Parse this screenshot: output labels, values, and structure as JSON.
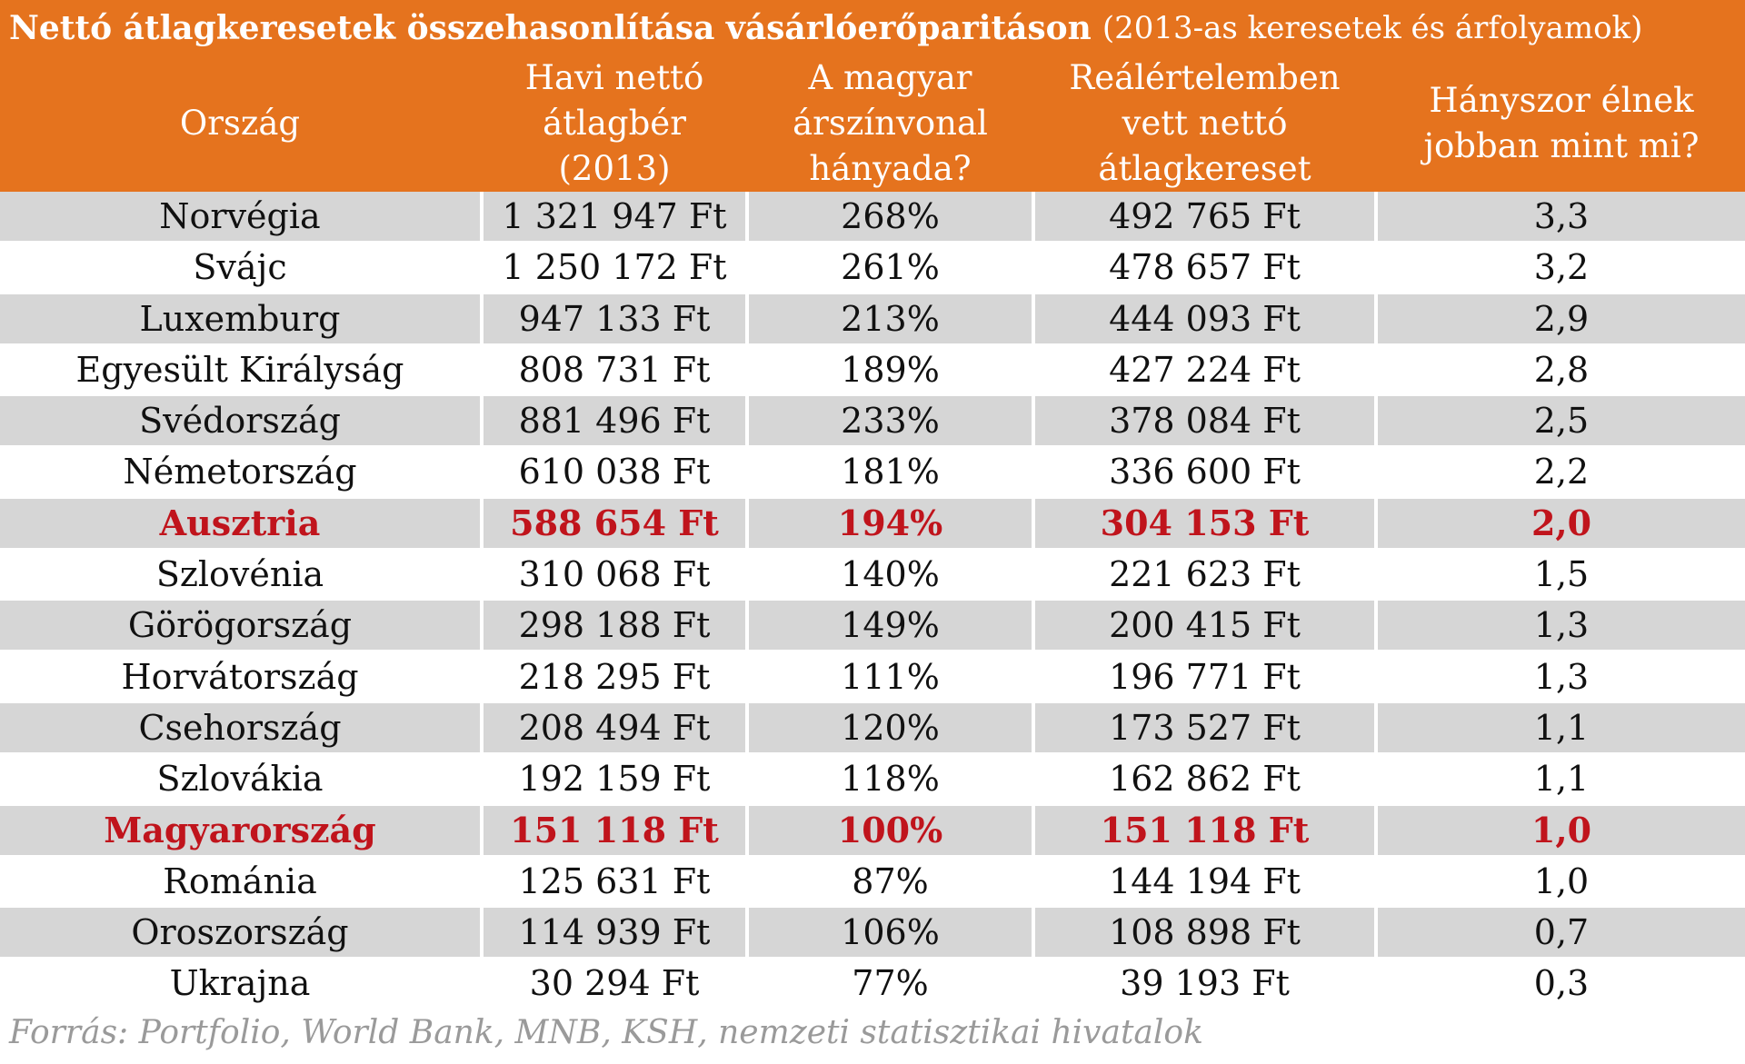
{
  "title": {
    "main": "Nettó átlagkeresetek összehasonlítása vásárlóerőparitáson",
    "sub": "(2013-as keresetek és árfolyamok)"
  },
  "headers": [
    "Ország",
    "Havi nettó átlagbér (2013)",
    "A magyar árszínvonal hányada?",
    "Reálértelemben vett nettó átlagkereset",
    "Hányszor élnek jobban mint mi?"
  ],
  "rows": [
    {
      "country": "Norvégia",
      "wage": "1 321 947 Ft",
      "price_level": "268%",
      "real_wage": "492 765 Ft",
      "ratio": "3,3",
      "highlight": false
    },
    {
      "country": "Svájc",
      "wage": "1 250 172 Ft",
      "price_level": "261%",
      "real_wage": "478 657 Ft",
      "ratio": "3,2",
      "highlight": false
    },
    {
      "country": "Luxemburg",
      "wage": "947 133 Ft",
      "price_level": "213%",
      "real_wage": "444 093 Ft",
      "ratio": "2,9",
      "highlight": false
    },
    {
      "country": "Egyesült Királyság",
      "wage": "808 731 Ft",
      "price_level": "189%",
      "real_wage": "427 224 Ft",
      "ratio": "2,8",
      "highlight": false
    },
    {
      "country": "Svédország",
      "wage": "881 496 Ft",
      "price_level": "233%",
      "real_wage": "378 084 Ft",
      "ratio": "2,5",
      "highlight": false
    },
    {
      "country": "Németország",
      "wage": "610 038 Ft",
      "price_level": "181%",
      "real_wage": "336 600 Ft",
      "ratio": "2,2",
      "highlight": false
    },
    {
      "country": "Ausztria",
      "wage": "588 654 Ft",
      "price_level": "194%",
      "real_wage": "304 153 Ft",
      "ratio": "2,0",
      "highlight": true
    },
    {
      "country": "Szlovénia",
      "wage": "310 068 Ft",
      "price_level": "140%",
      "real_wage": "221 623 Ft",
      "ratio": "1,5",
      "highlight": false
    },
    {
      "country": "Görögország",
      "wage": "298 188 Ft",
      "price_level": "149%",
      "real_wage": "200 415 Ft",
      "ratio": "1,3",
      "highlight": false
    },
    {
      "country": "Horvátország",
      "wage": "218 295 Ft",
      "price_level": "111%",
      "real_wage": "196 771 Ft",
      "ratio": "1,3",
      "highlight": false
    },
    {
      "country": "Csehország",
      "wage": "208 494 Ft",
      "price_level": "120%",
      "real_wage": "173 527 Ft",
      "ratio": "1,1",
      "highlight": false
    },
    {
      "country": "Szlovákia",
      "wage": "192 159 Ft",
      "price_level": "118%",
      "real_wage": "162 862 Ft",
      "ratio": "1,1",
      "highlight": false
    },
    {
      "country": "Magyarország",
      "wage": "151 118 Ft",
      "price_level": "100%",
      "real_wage": "151 118 Ft",
      "ratio": "1,0",
      "highlight": true
    },
    {
      "country": "Románia",
      "wage": "125 631 Ft",
      "price_level": "87%",
      "real_wage": "144 194 Ft",
      "ratio": "1,0",
      "highlight": false
    },
    {
      "country": "Oroszország",
      "wage": "114 939 Ft",
      "price_level": "106%",
      "real_wage": "108 898 Ft",
      "ratio": "0,7",
      "highlight": false
    },
    {
      "country": "Ukrajna",
      "wage": "30 294 Ft",
      "price_level": "77%",
      "real_wage": "39 193 Ft",
      "ratio": "0,3",
      "highlight": false
    }
  ],
  "source": "Forrás: Portfolio, World Bank, MNB, KSH, nemzeti statisztikai hivatalok",
  "colors": {
    "header_bg": "#e5731e",
    "shaded_row": "#d6d6d6",
    "highlight_text": "#c0141c"
  }
}
